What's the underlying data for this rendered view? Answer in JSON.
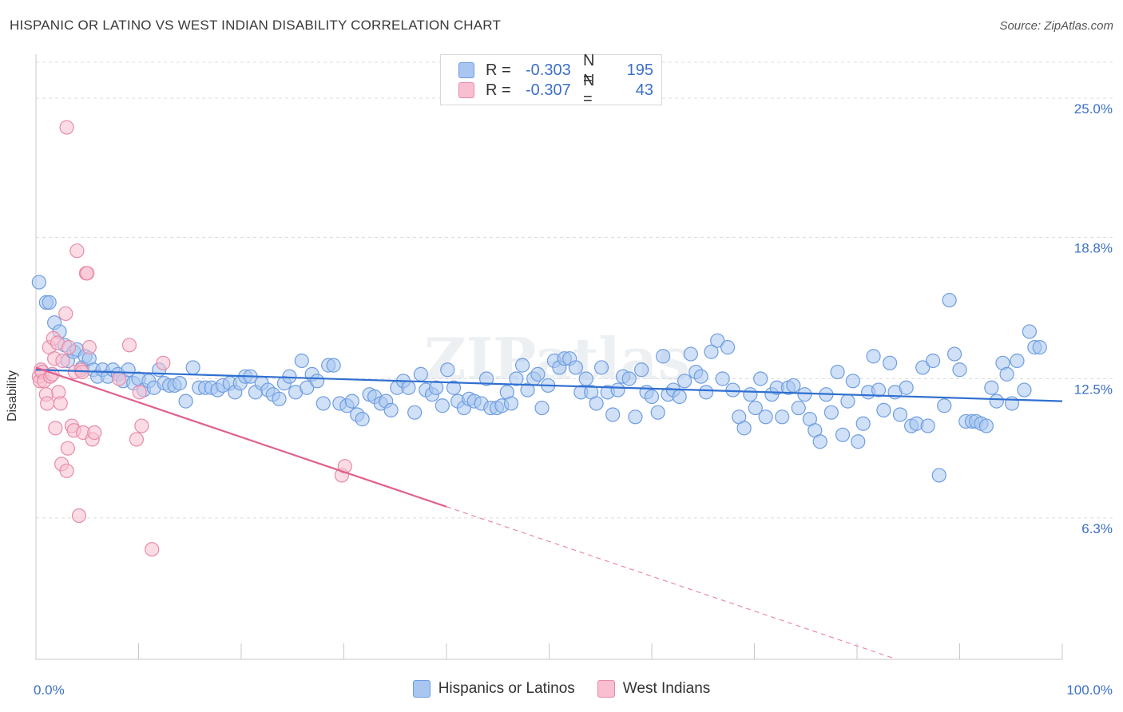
{
  "title": "HISPANIC OR LATINO VS WEST INDIAN DISABILITY CORRELATION CHART",
  "source": "Source: ZipAtlas.com",
  "watermark": "ZIPatlas",
  "legend": {
    "rows": [
      {
        "r_label": "R =",
        "r_value": "-0.303",
        "n_label": "N =",
        "n_value": "195",
        "color": "#a8c6f0",
        "border": "#6f9de0"
      },
      {
        "r_label": "R =",
        "r_value": "-0.307",
        "n_label": "N =",
        "n_value": "43",
        "color": "#f7bfd0",
        "border": "#e98aa8"
      }
    ]
  },
  "bottom_legend": [
    {
      "label": "Hispanics or Latinos",
      "color": "#a8c6f0",
      "border": "#6f9de0"
    },
    {
      "label": "West Indians",
      "color": "#f7bfd0",
      "border": "#e98aa8"
    }
  ],
  "chart_data": {
    "type": "scatter",
    "title": "HISPANIC OR LATINO VS WEST INDIAN DISABILITY CORRELATION CHART",
    "xlabel": "",
    "ylabel": "Disability",
    "x_tick_labels": [
      "0.0%",
      "100.0%"
    ],
    "y_tick_labels": [
      "25.0%",
      "18.8%",
      "12.5%",
      "6.3%"
    ],
    "y_ticks": [
      25.0,
      18.8,
      12.5,
      6.3
    ],
    "xlim": [
      0,
      100
    ],
    "ylim": [
      0,
      26.6
    ],
    "grid": true,
    "legend_position": "top-center",
    "series": [
      {
        "name": "Hispanics or Latinos",
        "color": "#6f9de0",
        "fill": "#a8c6f0",
        "trend": {
          "x0": 0,
          "y0": 12.9,
          "x1": 100,
          "y1": 11.5,
          "dashed_from": null
        },
        "points": [
          [
            0.3,
            16.8
          ],
          [
            1.0,
            15.9
          ],
          [
            1.3,
            15.9
          ],
          [
            1.8,
            15.0
          ],
          [
            2.3,
            14.6
          ],
          [
            2.8,
            14.0
          ],
          [
            3.1,
            13.3
          ],
          [
            3.7,
            13.7
          ],
          [
            4.0,
            13.8
          ],
          [
            4.5,
            13.0
          ],
          [
            4.8,
            13.5
          ],
          [
            5.2,
            13.4
          ],
          [
            5.6,
            12.9
          ],
          [
            6.0,
            12.6
          ],
          [
            6.5,
            12.9
          ],
          [
            7.0,
            12.6
          ],
          [
            7.5,
            12.9
          ],
          [
            8.0,
            12.7
          ],
          [
            8.5,
            12.4
          ],
          [
            9.0,
            12.9
          ],
          [
            9.5,
            12.3
          ],
          [
            10.0,
            12.5
          ],
          [
            10.5,
            12.0
          ],
          [
            11.0,
            12.4
          ],
          [
            11.5,
            12.1
          ],
          [
            12.0,
            12.9
          ],
          [
            12.5,
            12.3
          ],
          [
            13.0,
            12.2
          ],
          [
            13.5,
            12.2
          ],
          [
            14.0,
            12.3
          ],
          [
            14.6,
            11.5
          ],
          [
            15.3,
            13.0
          ],
          [
            15.9,
            12.1
          ],
          [
            16.5,
            12.1
          ],
          [
            17.1,
            12.1
          ],
          [
            17.7,
            12.0
          ],
          [
            18.2,
            12.2
          ],
          [
            18.9,
            12.3
          ],
          [
            19.4,
            11.9
          ],
          [
            19.9,
            12.3
          ],
          [
            20.4,
            12.6
          ],
          [
            20.9,
            12.6
          ],
          [
            21.4,
            11.9
          ],
          [
            22.0,
            12.3
          ],
          [
            22.6,
            12.0
          ],
          [
            23.1,
            11.8
          ],
          [
            23.7,
            11.6
          ],
          [
            24.2,
            12.3
          ],
          [
            24.7,
            12.6
          ],
          [
            25.3,
            11.9
          ],
          [
            25.9,
            13.3
          ],
          [
            26.4,
            12.1
          ],
          [
            26.9,
            12.7
          ],
          [
            27.4,
            12.4
          ],
          [
            28.0,
            11.4
          ],
          [
            28.5,
            13.1
          ],
          [
            29.0,
            13.1
          ],
          [
            29.6,
            11.4
          ],
          [
            30.3,
            11.3
          ],
          [
            30.8,
            11.5
          ],
          [
            31.3,
            10.9
          ],
          [
            31.8,
            10.7
          ],
          [
            32.5,
            11.8
          ],
          [
            33.0,
            11.7
          ],
          [
            33.6,
            11.4
          ],
          [
            34.1,
            11.5
          ],
          [
            34.6,
            11.1
          ],
          [
            35.2,
            12.1
          ],
          [
            35.8,
            12.4
          ],
          [
            36.3,
            12.1
          ],
          [
            36.9,
            11.0
          ],
          [
            37.5,
            12.7
          ],
          [
            38.0,
            12.0
          ],
          [
            38.6,
            11.8
          ],
          [
            39.0,
            12.1
          ],
          [
            39.6,
            11.3
          ],
          [
            40.1,
            12.9
          ],
          [
            40.7,
            12.1
          ],
          [
            41.1,
            11.5
          ],
          [
            41.7,
            11.2
          ],
          [
            42.2,
            11.6
          ],
          [
            42.7,
            11.5
          ],
          [
            43.4,
            11.4
          ],
          [
            43.9,
            12.5
          ],
          [
            44.3,
            11.2
          ],
          [
            44.9,
            11.2
          ],
          [
            45.4,
            11.3
          ],
          [
            45.9,
            11.9
          ],
          [
            46.3,
            11.4
          ],
          [
            46.8,
            12.5
          ],
          [
            47.4,
            13.1
          ],
          [
            47.9,
            12.0
          ],
          [
            48.5,
            12.5
          ],
          [
            48.9,
            12.7
          ],
          [
            49.3,
            11.2
          ],
          [
            49.9,
            12.2
          ],
          [
            50.5,
            13.3
          ],
          [
            51.0,
            13.0
          ],
          [
            51.5,
            13.4
          ],
          [
            52.0,
            13.4
          ],
          [
            52.6,
            13.0
          ],
          [
            53.1,
            11.9
          ],
          [
            53.6,
            12.5
          ],
          [
            54.1,
            11.9
          ],
          [
            54.6,
            11.4
          ],
          [
            55.1,
            13.0
          ],
          [
            55.7,
            11.9
          ],
          [
            56.2,
            10.9
          ],
          [
            56.7,
            12.0
          ],
          [
            57.2,
            12.6
          ],
          [
            57.8,
            12.5
          ],
          [
            58.4,
            10.8
          ],
          [
            59.0,
            12.9
          ],
          [
            59.5,
            11.9
          ],
          [
            60.0,
            11.7
          ],
          [
            60.6,
            11.0
          ],
          [
            61.1,
            13.5
          ],
          [
            61.6,
            11.8
          ],
          [
            62.1,
            12.0
          ],
          [
            62.7,
            11.7
          ],
          [
            63.2,
            12.4
          ],
          [
            63.8,
            13.6
          ],
          [
            64.3,
            12.8
          ],
          [
            64.8,
            12.6
          ],
          [
            65.3,
            11.9
          ],
          [
            65.8,
            13.7
          ],
          [
            66.4,
            14.2
          ],
          [
            66.9,
            12.5
          ],
          [
            67.4,
            13.9
          ],
          [
            67.9,
            12.0
          ],
          [
            68.5,
            10.8
          ],
          [
            69.0,
            10.3
          ],
          [
            69.6,
            11.8
          ],
          [
            70.1,
            11.2
          ],
          [
            70.6,
            12.5
          ],
          [
            71.1,
            10.8
          ],
          [
            71.7,
            11.8
          ],
          [
            72.2,
            12.1
          ],
          [
            72.7,
            10.8
          ],
          [
            73.3,
            12.1
          ],
          [
            73.8,
            12.2
          ],
          [
            74.3,
            11.2
          ],
          [
            74.9,
            11.8
          ],
          [
            75.4,
            10.7
          ],
          [
            75.9,
            10.2
          ],
          [
            76.4,
            9.7
          ],
          [
            77.0,
            11.8
          ],
          [
            77.5,
            11.0
          ],
          [
            78.1,
            12.8
          ],
          [
            78.6,
            10.0
          ],
          [
            79.1,
            11.5
          ],
          [
            79.6,
            12.4
          ],
          [
            80.1,
            9.7
          ],
          [
            80.6,
            10.5
          ],
          [
            81.1,
            11.9
          ],
          [
            81.6,
            13.5
          ],
          [
            82.1,
            12.0
          ],
          [
            82.6,
            11.1
          ],
          [
            83.2,
            13.2
          ],
          [
            83.7,
            11.9
          ],
          [
            84.2,
            10.9
          ],
          [
            84.8,
            12.1
          ],
          [
            85.3,
            10.4
          ],
          [
            85.8,
            10.5
          ],
          [
            86.4,
            13.0
          ],
          [
            86.9,
            10.4
          ],
          [
            87.4,
            13.3
          ],
          [
            88.0,
            8.2
          ],
          [
            88.5,
            11.3
          ],
          [
            89.0,
            16.0
          ],
          [
            89.5,
            13.6
          ],
          [
            90.0,
            12.9
          ],
          [
            90.6,
            10.6
          ],
          [
            91.2,
            10.6
          ],
          [
            91.6,
            10.6
          ],
          [
            92.1,
            10.5
          ],
          [
            92.6,
            10.4
          ],
          [
            93.1,
            12.1
          ],
          [
            93.6,
            11.5
          ],
          [
            94.2,
            13.2
          ],
          [
            94.6,
            12.7
          ],
          [
            95.1,
            11.4
          ],
          [
            95.6,
            13.3
          ],
          [
            96.3,
            12.0
          ],
          [
            96.8,
            14.6
          ],
          [
            97.3,
            13.9
          ],
          [
            97.8,
            13.9
          ]
        ]
      },
      {
        "name": "West Indians",
        "color": "#e98aa8",
        "fill": "#f7bfd0",
        "trend": {
          "x0": 0,
          "y0": 13.0,
          "x1": 40,
          "y1": 6.8,
          "dashed_to_x": 83.5
        },
        "points": [
          [
            0.3,
            12.6
          ],
          [
            0.4,
            12.4
          ],
          [
            0.5,
            12.9
          ],
          [
            0.6,
            12.8
          ],
          [
            0.8,
            12.4
          ],
          [
            1.0,
            11.8
          ],
          [
            1.1,
            11.4
          ],
          [
            1.3,
            13.9
          ],
          [
            1.4,
            12.6
          ],
          [
            1.6,
            12.7
          ],
          [
            1.7,
            14.3
          ],
          [
            1.8,
            13.4
          ],
          [
            1.9,
            10.3
          ],
          [
            2.1,
            14.1
          ],
          [
            2.2,
            11.9
          ],
          [
            2.4,
            11.4
          ],
          [
            2.5,
            8.7
          ],
          [
            2.6,
            13.3
          ],
          [
            2.9,
            15.4
          ],
          [
            3.0,
            8.4
          ],
          [
            3.1,
            9.4
          ],
          [
            3.2,
            13.9
          ],
          [
            3.5,
            10.4
          ],
          [
            3.7,
            10.2
          ],
          [
            3.8,
            12.8
          ],
          [
            4.0,
            18.2
          ],
          [
            4.2,
            6.4
          ],
          [
            4.4,
            12.9
          ],
          [
            4.5,
            12.8
          ],
          [
            4.6,
            10.1
          ],
          [
            4.9,
            17.2
          ],
          [
            5.0,
            17.2
          ],
          [
            5.2,
            13.9
          ],
          [
            5.5,
            9.8
          ],
          [
            5.7,
            10.1
          ],
          [
            8.1,
            12.5
          ],
          [
            9.1,
            14.0
          ],
          [
            9.8,
            9.8
          ],
          [
            10.1,
            11.9
          ],
          [
            10.3,
            10.4
          ],
          [
            11.3,
            4.9
          ],
          [
            12.4,
            13.2
          ],
          [
            29.8,
            8.2
          ],
          [
            30.1,
            8.6
          ],
          [
            3.0,
            23.7
          ]
        ]
      }
    ]
  }
}
